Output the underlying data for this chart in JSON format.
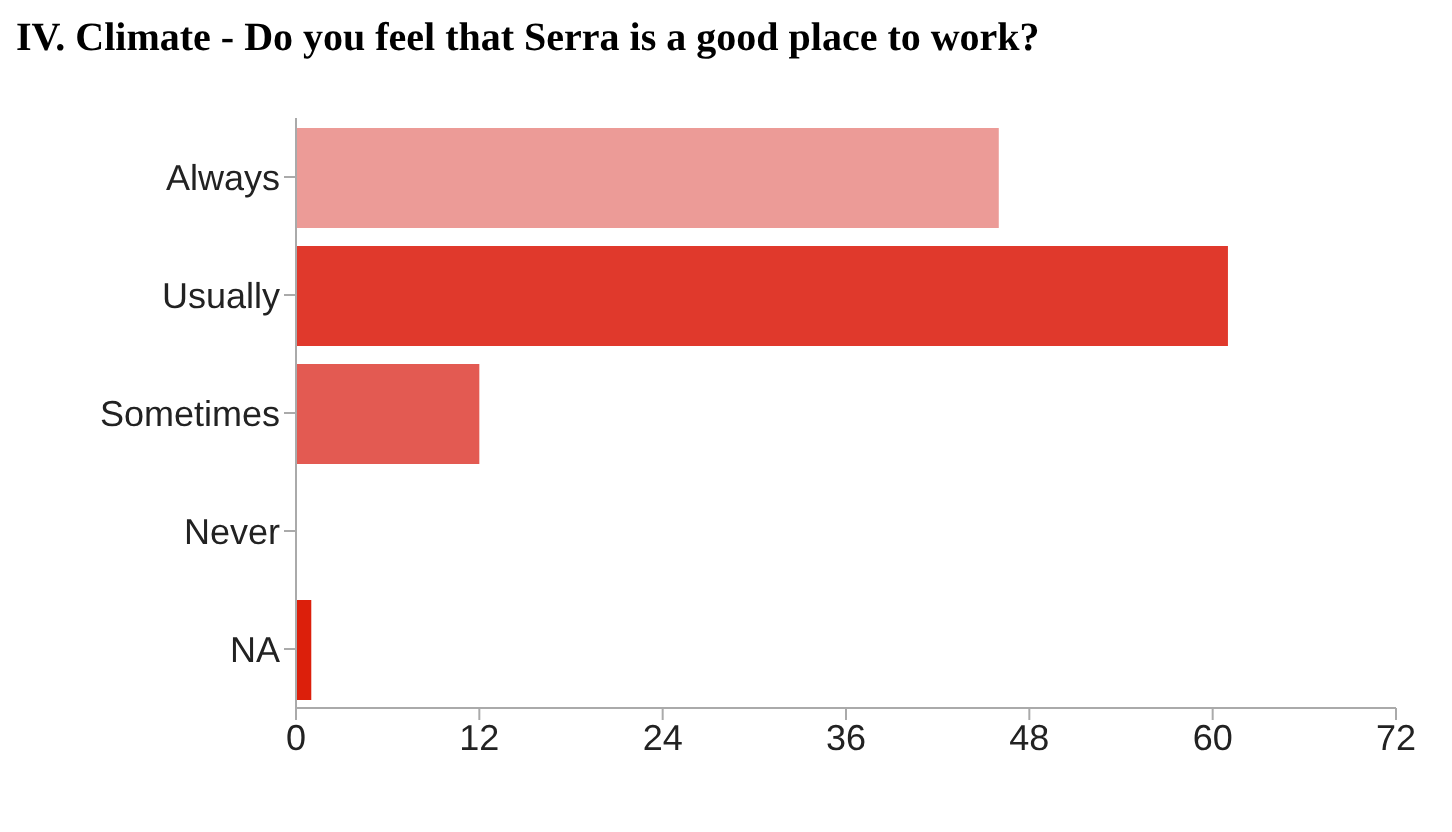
{
  "chart_data": {
    "type": "bar",
    "orientation": "horizontal",
    "title": "IV.  Climate - Do you feel that Serra is a good place to work?",
    "categories": [
      "Always",
      "Usually",
      "Sometimes",
      "Never",
      "NA"
    ],
    "values": [
      46,
      61,
      12,
      0,
      1
    ],
    "colors": [
      "#ec9b97",
      "#e0392c",
      "#e35a52",
      "#e0392c",
      "#dc1f0b"
    ],
    "xlim": [
      0,
      72
    ],
    "xticks": [
      0,
      12,
      24,
      36,
      48,
      60,
      72
    ],
    "grid": false,
    "legend": false
  }
}
